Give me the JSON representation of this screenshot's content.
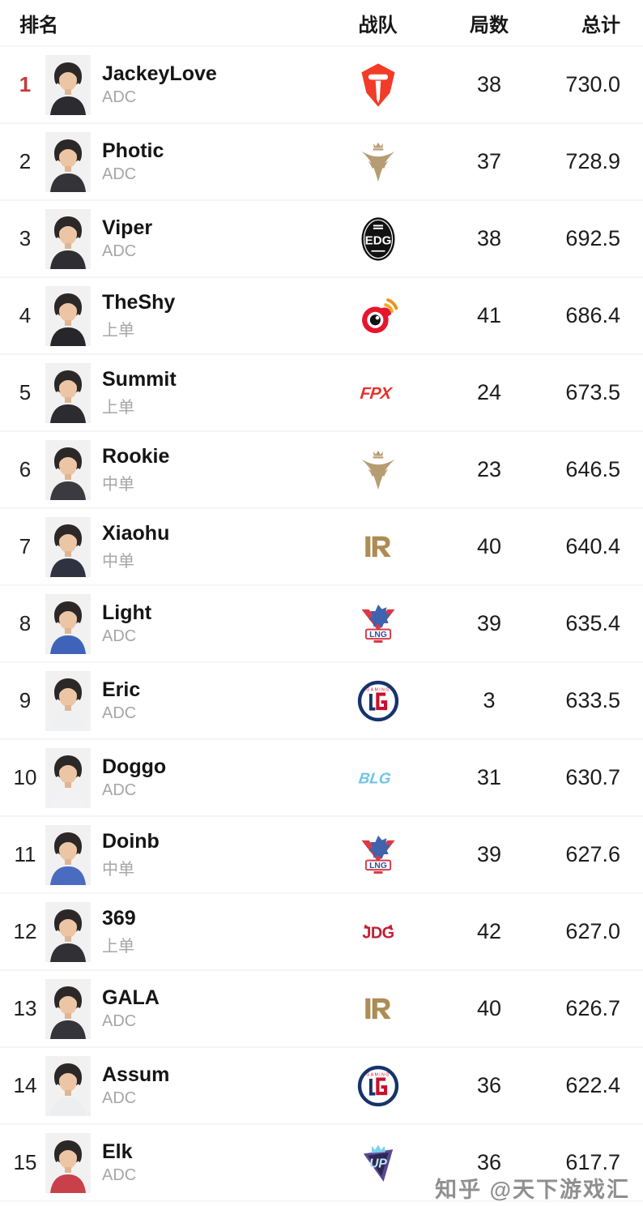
{
  "header": {
    "rank": "排名",
    "team": "战队",
    "games": "局数",
    "total": "总计"
  },
  "colors": {
    "rank1_red": "#c23b38",
    "name_dark": "#151515",
    "role_gray": "#a6a6a6",
    "divider": "#f5f5f5",
    "tes_red": "#f23c27",
    "gold": "#b69c72",
    "edg_black": "#111111",
    "weibo_red": "#e6162d",
    "weibo_orange": "#f5a623",
    "fpx_red": "#e8312c",
    "rng_gold": "#ad8c55",
    "lng_red": "#d93a47",
    "lng_blue": "#3f63ad",
    "lgd_navy": "#16336b",
    "lgd_red": "#c8102e",
    "blg_blue": "#6fc3e8",
    "jdg_red": "#c01f32",
    "up_purple": "#5a4896",
    "up_lightblue": "#7fd0ef"
  },
  "players": [
    {
      "rank": "1",
      "name": "JackeyLove",
      "role": "ADC",
      "team": "TES",
      "logo": "tes",
      "games": "38",
      "total": "730.0",
      "highlight": true,
      "shirt": "#2b2b30"
    },
    {
      "rank": "2",
      "name": "Photic",
      "role": "ADC",
      "team": "TT",
      "logo": "gold",
      "games": "37",
      "total": "728.9",
      "shirt": "#333338"
    },
    {
      "rank": "3",
      "name": "Viper",
      "role": "ADC",
      "team": "EDG",
      "logo": "edg",
      "games": "38",
      "total": "692.5",
      "shirt": "#2e2e33"
    },
    {
      "rank": "4",
      "name": "TheShy",
      "role": "上单",
      "team": "WBG",
      "logo": "wbg",
      "games": "41",
      "total": "686.4",
      "shirt": "#26262b"
    },
    {
      "rank": "5",
      "name": "Summit",
      "role": "上单",
      "team": "FPX",
      "logo": "fpx",
      "games": "24",
      "total": "673.5",
      "shirt": "#2b2b30"
    },
    {
      "rank": "6",
      "name": "Rookie",
      "role": "中单",
      "team": "V5",
      "logo": "gold",
      "games": "23",
      "total": "646.5",
      "shirt": "#3a3a40"
    },
    {
      "rank": "7",
      "name": "Xiaohu",
      "role": "中单",
      "team": "RNG",
      "logo": "rng",
      "games": "40",
      "total": "640.4",
      "shirt": "#2f3240"
    },
    {
      "rank": "8",
      "name": "Light",
      "role": "ADC",
      "team": "LNG",
      "logo": "lng",
      "games": "39",
      "total": "635.4",
      "shirt": "#3e63b8"
    },
    {
      "rank": "9",
      "name": "Eric",
      "role": "ADC",
      "team": "LGD",
      "logo": "lgd",
      "games": "3",
      "total": "633.5",
      "shirt": "#eef0f2"
    },
    {
      "rank": "10",
      "name": "Doggo",
      "role": "ADC",
      "team": "BLG",
      "logo": "blg",
      "games": "31",
      "total": "630.7",
      "shirt": "#f2f2f4"
    },
    {
      "rank": "11",
      "name": "Doinb",
      "role": "中单",
      "team": "LNG",
      "logo": "lng",
      "games": "39",
      "total": "627.6",
      "shirt": "#4a6cc0"
    },
    {
      "rank": "12",
      "name": "369",
      "role": "上单",
      "team": "JDG",
      "logo": "jdg",
      "games": "42",
      "total": "627.0",
      "shirt": "#303035"
    },
    {
      "rank": "13",
      "name": "GALA",
      "role": "ADC",
      "team": "RNG",
      "logo": "rng",
      "games": "40",
      "total": "626.7",
      "shirt": "#34343a"
    },
    {
      "rank": "14",
      "name": "Assum",
      "role": "ADC",
      "team": "LGD",
      "logo": "lgd",
      "games": "36",
      "total": "622.4",
      "shirt": "#eceef0"
    },
    {
      "rank": "15",
      "name": "Elk",
      "role": "ADC",
      "team": "UP",
      "logo": "up",
      "games": "36",
      "total": "617.7",
      "shirt": "#c8404a"
    }
  ],
  "watermark": {
    "text": "知乎 @天下游戏汇"
  }
}
